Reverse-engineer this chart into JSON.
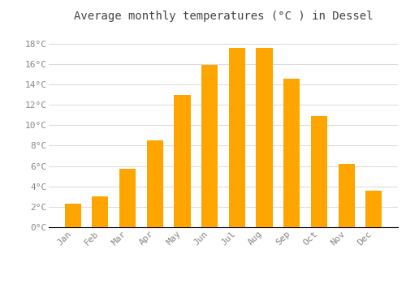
{
  "title": "Average monthly temperatures (°C ) in Dessel",
  "months": [
    "Jan",
    "Feb",
    "Mar",
    "Apr",
    "May",
    "Jun",
    "Jul",
    "Aug",
    "Sep",
    "Oct",
    "Nov",
    "Dec"
  ],
  "values": [
    2.3,
    3.0,
    5.7,
    8.5,
    13.0,
    15.9,
    17.6,
    17.6,
    14.6,
    10.9,
    6.2,
    3.6
  ],
  "bar_color": "#FFA500",
  "background_color": "#FFFFFF",
  "grid_color": "#DDDDDD",
  "ylim": [
    0,
    19.5
  ],
  "yticks": [
    0,
    2,
    4,
    6,
    8,
    10,
    12,
    14,
    16,
    18
  ],
  "ytick_labels": [
    "0°C",
    "2°C",
    "4°C",
    "6°C",
    "8°C",
    "10°C",
    "12°C",
    "14°C",
    "16°C",
    "18°C"
  ],
  "title_fontsize": 10,
  "tick_fontsize": 8,
  "tick_font_color": "#888888",
  "title_color": "#444444",
  "bar_width": 0.6
}
